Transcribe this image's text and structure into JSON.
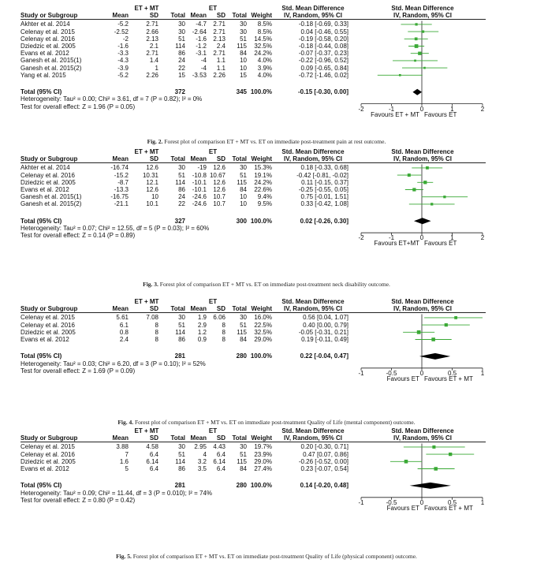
{
  "figures": [
    {
      "caption_label": "Fig. 2.",
      "caption_text": "Forest plot of comparison ET + MT vs. ET on immediate post-treatment pain at rest outcome.",
      "group1": "ET + MT",
      "group2": "ET",
      "col_study": "Study or Subgroup",
      "col_mean": "Mean",
      "col_sd": "SD",
      "col_total": "Total",
      "col_weight": "Weight",
      "effect_header": "Std. Mean Difference",
      "effect_sub": "IV, Random, 95% CI",
      "plot_header": "Std. Mean Difference",
      "plot_sub": "IV, Random, 95% CI",
      "rows": [
        {
          "study": "Akhter et al. 2014",
          "m1": "-5.2",
          "sd1": "2.71",
          "n1": "30",
          "m2": "-4.7",
          "sd2": "2.71",
          "n2": "30",
          "weight": "8.5%",
          "ci": "-0.18 [-0.69, 0.33]",
          "est": -0.18,
          "lo": -0.69,
          "hi": 0.33,
          "w": 8.5
        },
        {
          "study": "Celenay et al. 2015",
          "m1": "-2.52",
          "sd1": "2.66",
          "n1": "30",
          "m2": "-2.64",
          "sd2": "2.71",
          "n2": "30",
          "weight": "8.5%",
          "ci": "0.04 [-0.46, 0.55]",
          "est": 0.04,
          "lo": -0.46,
          "hi": 0.55,
          "w": 8.5
        },
        {
          "study": "Celenay et al. 2016",
          "m1": "-2",
          "sd1": "2.13",
          "n1": "51",
          "m2": "-1.6",
          "sd2": "2.13",
          "n2": "51",
          "weight": "14.5%",
          "ci": "-0.19 [-0.58, 0.20]",
          "est": -0.19,
          "lo": -0.58,
          "hi": 0.2,
          "w": 14.5
        },
        {
          "study": "Dziedzic et al. 2005",
          "m1": "-1.6",
          "sd1": "2.1",
          "n1": "114",
          "m2": "-1.2",
          "sd2": "2.4",
          "n2": "115",
          "weight": "32.5%",
          "ci": "-0.18 [-0.44, 0.08]",
          "est": -0.18,
          "lo": -0.44,
          "hi": 0.08,
          "w": 32.5
        },
        {
          "study": "Evans et al. 2012",
          "m1": "-3.3",
          "sd1": "2.71",
          "n1": "86",
          "m2": "-3.1",
          "sd2": "2.71",
          "n2": "84",
          "weight": "24.2%",
          "ci": "-0.07 [-0.37, 0.23]",
          "est": -0.07,
          "lo": -0.37,
          "hi": 0.23,
          "w": 24.2
        },
        {
          "study": "Ganesh et al. 2015(1)",
          "m1": "-4.3",
          "sd1": "1.4",
          "n1": "24",
          "m2": "-4",
          "sd2": "1.1",
          "n2": "10",
          "weight": "4.0%",
          "ci": "-0.22 [-0.96, 0.52]",
          "est": -0.22,
          "lo": -0.96,
          "hi": 0.52,
          "w": 4.0
        },
        {
          "study": "Ganesh et al. 2015(2)",
          "m1": "-3.9",
          "sd1": "1",
          "n1": "22",
          "m2": "-4",
          "sd2": "1.1",
          "n2": "10",
          "weight": "3.9%",
          "ci": "0.09 [-0.65, 0.84]",
          "est": 0.09,
          "lo": -0.65,
          "hi": 0.84,
          "w": 3.9
        },
        {
          "study": "Yang et al. 2015",
          "m1": "-5.2",
          "sd1": "2.26",
          "n1": "15",
          "m2": "-3.53",
          "sd2": "2.26",
          "n2": "15",
          "weight": "4.0%",
          "ci": "-0.72 [-1.46, 0.02]",
          "est": -0.72,
          "lo": -1.46,
          "hi": 0.02,
          "w": 4.0
        }
      ],
      "total_label": "Total (95% CI)",
      "total_n1": "372",
      "total_n2": "345",
      "total_weight": "100.0%",
      "total_ci": "-0.15 [-0.30, 0.00]",
      "total_est": -0.15,
      "total_lo": -0.3,
      "total_hi": 0.0,
      "heterogeneity": "Heterogeneity: Tau² = 0.00; Chi² = 3.61, df = 7 (P = 0.82); I² = 0%",
      "overall": "Test for overall effect: Z = 1.96 (P = 0.05)",
      "axis_ticks": [
        "-2",
        "-1",
        "0",
        "1",
        "2"
      ],
      "axis_min": -2,
      "axis_max": 2,
      "favours_left": "Favours ET + MT",
      "favours_right": "Favours ET"
    },
    {
      "caption_label": "Fig. 3.",
      "caption_text": "Forest plot of comparison ET + MT vs. ET on immediate post-treatment neck disability outcome.",
      "group1": "ET + MT",
      "group2": "ET",
      "col_study": "Study or Subgroup",
      "col_mean": "Mean",
      "col_sd": "SD",
      "col_total": "Total",
      "col_weight": "Weight",
      "effect_header": "Std. Mean Difference",
      "effect_sub": "IV, Random, 95% CI",
      "plot_header": "Std. Mean Difference",
      "plot_sub": "IV, Random, 95% CI",
      "rows": [
        {
          "study": "Akhter et al. 2014",
          "m1": "-16.74",
          "sd1": "12.6",
          "n1": "30",
          "m2": "-19",
          "sd2": "12.6",
          "n2": "30",
          "weight": "15.3%",
          "ci": "0.18 [-0.33, 0.68]",
          "est": 0.18,
          "lo": -0.33,
          "hi": 0.68,
          "w": 15.3
        },
        {
          "study": "Celenay et al. 2016",
          "m1": "-15.2",
          "sd1": "10.31",
          "n1": "51",
          "m2": "-10.8",
          "sd2": "10.67",
          "n2": "51",
          "weight": "19.1%",
          "ci": "-0.42 [-0.81, -0.02]",
          "est": -0.42,
          "lo": -0.81,
          "hi": -0.02,
          "w": 19.1
        },
        {
          "study": "Dziedzic et al. 2005",
          "m1": "-8.7",
          "sd1": "12.1",
          "n1": "114",
          "m2": "-10.1",
          "sd2": "12.6",
          "n2": "115",
          "weight": "24.2%",
          "ci": "0.11 [-0.15, 0.37]",
          "est": 0.11,
          "lo": -0.15,
          "hi": 0.37,
          "w": 24.2
        },
        {
          "study": "Evans et al. 2012",
          "m1": "-13.3",
          "sd1": "12.6",
          "n1": "86",
          "m2": "-10.1",
          "sd2": "12.6",
          "n2": "84",
          "weight": "22.6%",
          "ci": "-0.25 [-0.55, 0.05]",
          "est": -0.25,
          "lo": -0.55,
          "hi": 0.05,
          "w": 22.6
        },
        {
          "study": "Ganesh et al. 2015(1)",
          "m1": "-16.75",
          "sd1": "10",
          "n1": "24",
          "m2": "-24.6",
          "sd2": "10.7",
          "n2": "10",
          "weight": "9.4%",
          "ci": "0.75 [-0.01, 1.51]",
          "est": 0.75,
          "lo": -0.01,
          "hi": 1.51,
          "w": 9.4
        },
        {
          "study": "Ganesh et al. 2015(2)",
          "m1": "-21.1",
          "sd1": "10.1",
          "n1": "22",
          "m2": "-24.6",
          "sd2": "10.7",
          "n2": "10",
          "weight": "9.5%",
          "ci": "0.33 [-0.42, 1.08]",
          "est": 0.33,
          "lo": -0.42,
          "hi": 1.08,
          "w": 9.5
        }
      ],
      "total_label": "Total (95% CI)",
      "total_n1": "327",
      "total_n2": "300",
      "total_weight": "100.0%",
      "total_ci": "0.02 [-0.26, 0.30]",
      "total_est": 0.02,
      "total_lo": -0.26,
      "total_hi": 0.3,
      "heterogeneity": "Heterogeneity: Tau² = 0.07; Chi² = 12.55, df = 5 (P = 0.03); I² = 60%",
      "overall": "Test for overall effect: Z = 0.14 (P = 0.89)",
      "axis_ticks": [
        "-2",
        "-1",
        "0",
        "1",
        "2"
      ],
      "axis_min": -2,
      "axis_max": 2,
      "favours_left": "Favours ET+MT",
      "favours_right": "Favours ET"
    },
    {
      "caption_label": "Fig. 4.",
      "caption_text": "Forest plot of comparison ET + MT vs. ET on immediate post-treatment Quality of Life (mental component) outcome.",
      "group1": "ET + MT",
      "group2": "ET",
      "col_study": "Study or Subgroup",
      "col_mean": "Mean",
      "col_sd": "SD",
      "col_total": "Total",
      "col_weight": "Weight",
      "effect_header": "Std. Mean Difference",
      "effect_sub": "IV, Random, 95% CI",
      "plot_header": "Std. Mean Difference",
      "plot_sub": "IV, Random, 95% CI",
      "rows": [
        {
          "study": "Celenay et al. 2015",
          "m1": "5.61",
          "sd1": "7.08",
          "n1": "30",
          "m2": "1.9",
          "sd2": "6.06",
          "n2": "30",
          "weight": "16.0%",
          "ci": "0.56 [0.04, 1.07]",
          "est": 0.56,
          "lo": 0.04,
          "hi": 1.07,
          "w": 16.0
        },
        {
          "study": "Celenay et al. 2016",
          "m1": "6.1",
          "sd1": "8",
          "n1": "51",
          "m2": "2.9",
          "sd2": "8",
          "n2": "51",
          "weight": "22.5%",
          "ci": "0.40 [0.00, 0.79]",
          "est": 0.4,
          "lo": 0.0,
          "hi": 0.79,
          "w": 22.5
        },
        {
          "study": "Dziedzic et al. 2005",
          "m1": "0.8",
          "sd1": "8",
          "n1": "114",
          "m2": "1.2",
          "sd2": "8",
          "n2": "115",
          "weight": "32.5%",
          "ci": "-0.05 [-0.31, 0.21]",
          "est": -0.05,
          "lo": -0.31,
          "hi": 0.21,
          "w": 32.5
        },
        {
          "study": "Evans et al. 2012",
          "m1": "2.4",
          "sd1": "8",
          "n1": "86",
          "m2": "0.9",
          "sd2": "8",
          "n2": "84",
          "weight": "29.0%",
          "ci": "0.19 [-0.11, 0.49]",
          "est": 0.19,
          "lo": -0.11,
          "hi": 0.49,
          "w": 29.0
        }
      ],
      "total_label": "Total (95% CI)",
      "total_n1": "281",
      "total_n2": "280",
      "total_weight": "100.0%",
      "total_ci": "0.22 [-0.04, 0.47]",
      "total_est": 0.22,
      "total_lo": -0.04,
      "total_hi": 0.47,
      "heterogeneity": "Heterogeneity: Tau² = 0.03; Chi² = 6.20, df = 3 (P = 0.10); I² = 52%",
      "overall": "Test for overall effect: Z = 1.69 (P = 0.09)",
      "axis_ticks": [
        "-1",
        "-0.5",
        "0",
        "0.5",
        "1"
      ],
      "axis_min": -1,
      "axis_max": 1,
      "favours_left": "Favours ET",
      "favours_right": "Favours ET + MT"
    },
    {
      "caption_label": "Fig. 5.",
      "caption_text": "Forest plot of comparison ET + MT vs. ET on immediate post-treatment Quality of Life (physical component) outcome.",
      "group1": "ET + MT",
      "group2": "ET",
      "col_study": "Study or Subgroup",
      "col_mean": "Mean",
      "col_sd": "SD",
      "col_total": "Total",
      "col_weight": "Weight",
      "effect_header": "Std. Mean Difference",
      "effect_sub": "IV, Random, 95% CI",
      "plot_header": "Std. Mean Difference",
      "plot_sub": "IV, Random, 95% CI",
      "rows": [
        {
          "study": "Celenay et al. 2015",
          "m1": "3.88",
          "sd1": "4.58",
          "n1": "30",
          "m2": "2.95",
          "sd2": "4.43",
          "n2": "30",
          "weight": "19.7%",
          "ci": "0.20 [-0.30, 0.71]",
          "est": 0.2,
          "lo": -0.3,
          "hi": 0.71,
          "w": 19.7
        },
        {
          "study": "Celenay et al. 2016",
          "m1": "7",
          "sd1": "6.4",
          "n1": "51",
          "m2": "4",
          "sd2": "6.4",
          "n2": "51",
          "weight": "23.9%",
          "ci": "0.47 [0.07, 0.86]",
          "est": 0.47,
          "lo": 0.07,
          "hi": 0.86,
          "w": 23.9
        },
        {
          "study": "Dziedzic et al. 2005",
          "m1": "1.6",
          "sd1": "6.14",
          "n1": "114",
          "m2": "3.2",
          "sd2": "6.14",
          "n2": "115",
          "weight": "29.0%",
          "ci": "-0.26 [-0.52, 0.00]",
          "est": -0.26,
          "lo": -0.52,
          "hi": 0.0,
          "w": 29.0
        },
        {
          "study": "Evans et al. 2012",
          "m1": "5",
          "sd1": "6.4",
          "n1": "86",
          "m2": "3.5",
          "sd2": "6.4",
          "n2": "84",
          "weight": "27.4%",
          "ci": "0.23 [-0.07, 0.54]",
          "est": 0.23,
          "lo": -0.07,
          "hi": 0.54,
          "w": 27.4
        }
      ],
      "total_label": "Total (95% CI)",
      "total_n1": "281",
      "total_n2": "280",
      "total_weight": "100.0%",
      "total_ci": "0.14 [-0.20, 0.48]",
      "total_est": 0.14,
      "total_lo": -0.2,
      "total_hi": 0.48,
      "heterogeneity": "Heterogeneity: Tau² = 0.09; Chi² = 11.44, df = 3 (P = 0.010); I² = 74%",
      "overall": "Test for overall effect: Z = 0.80 (P = 0.42)",
      "axis_ticks": [
        "-1",
        "-0.5",
        "0",
        "0.5",
        "1"
      ],
      "axis_min": -1,
      "axis_max": 1,
      "favours_left": "Favours ET",
      "favours_right": "Favours ET + MT"
    }
  ],
  "colors": {
    "study_marker": "#3aa935",
    "pooled_marker": "#000000",
    "ci_line": "#3aa935"
  }
}
